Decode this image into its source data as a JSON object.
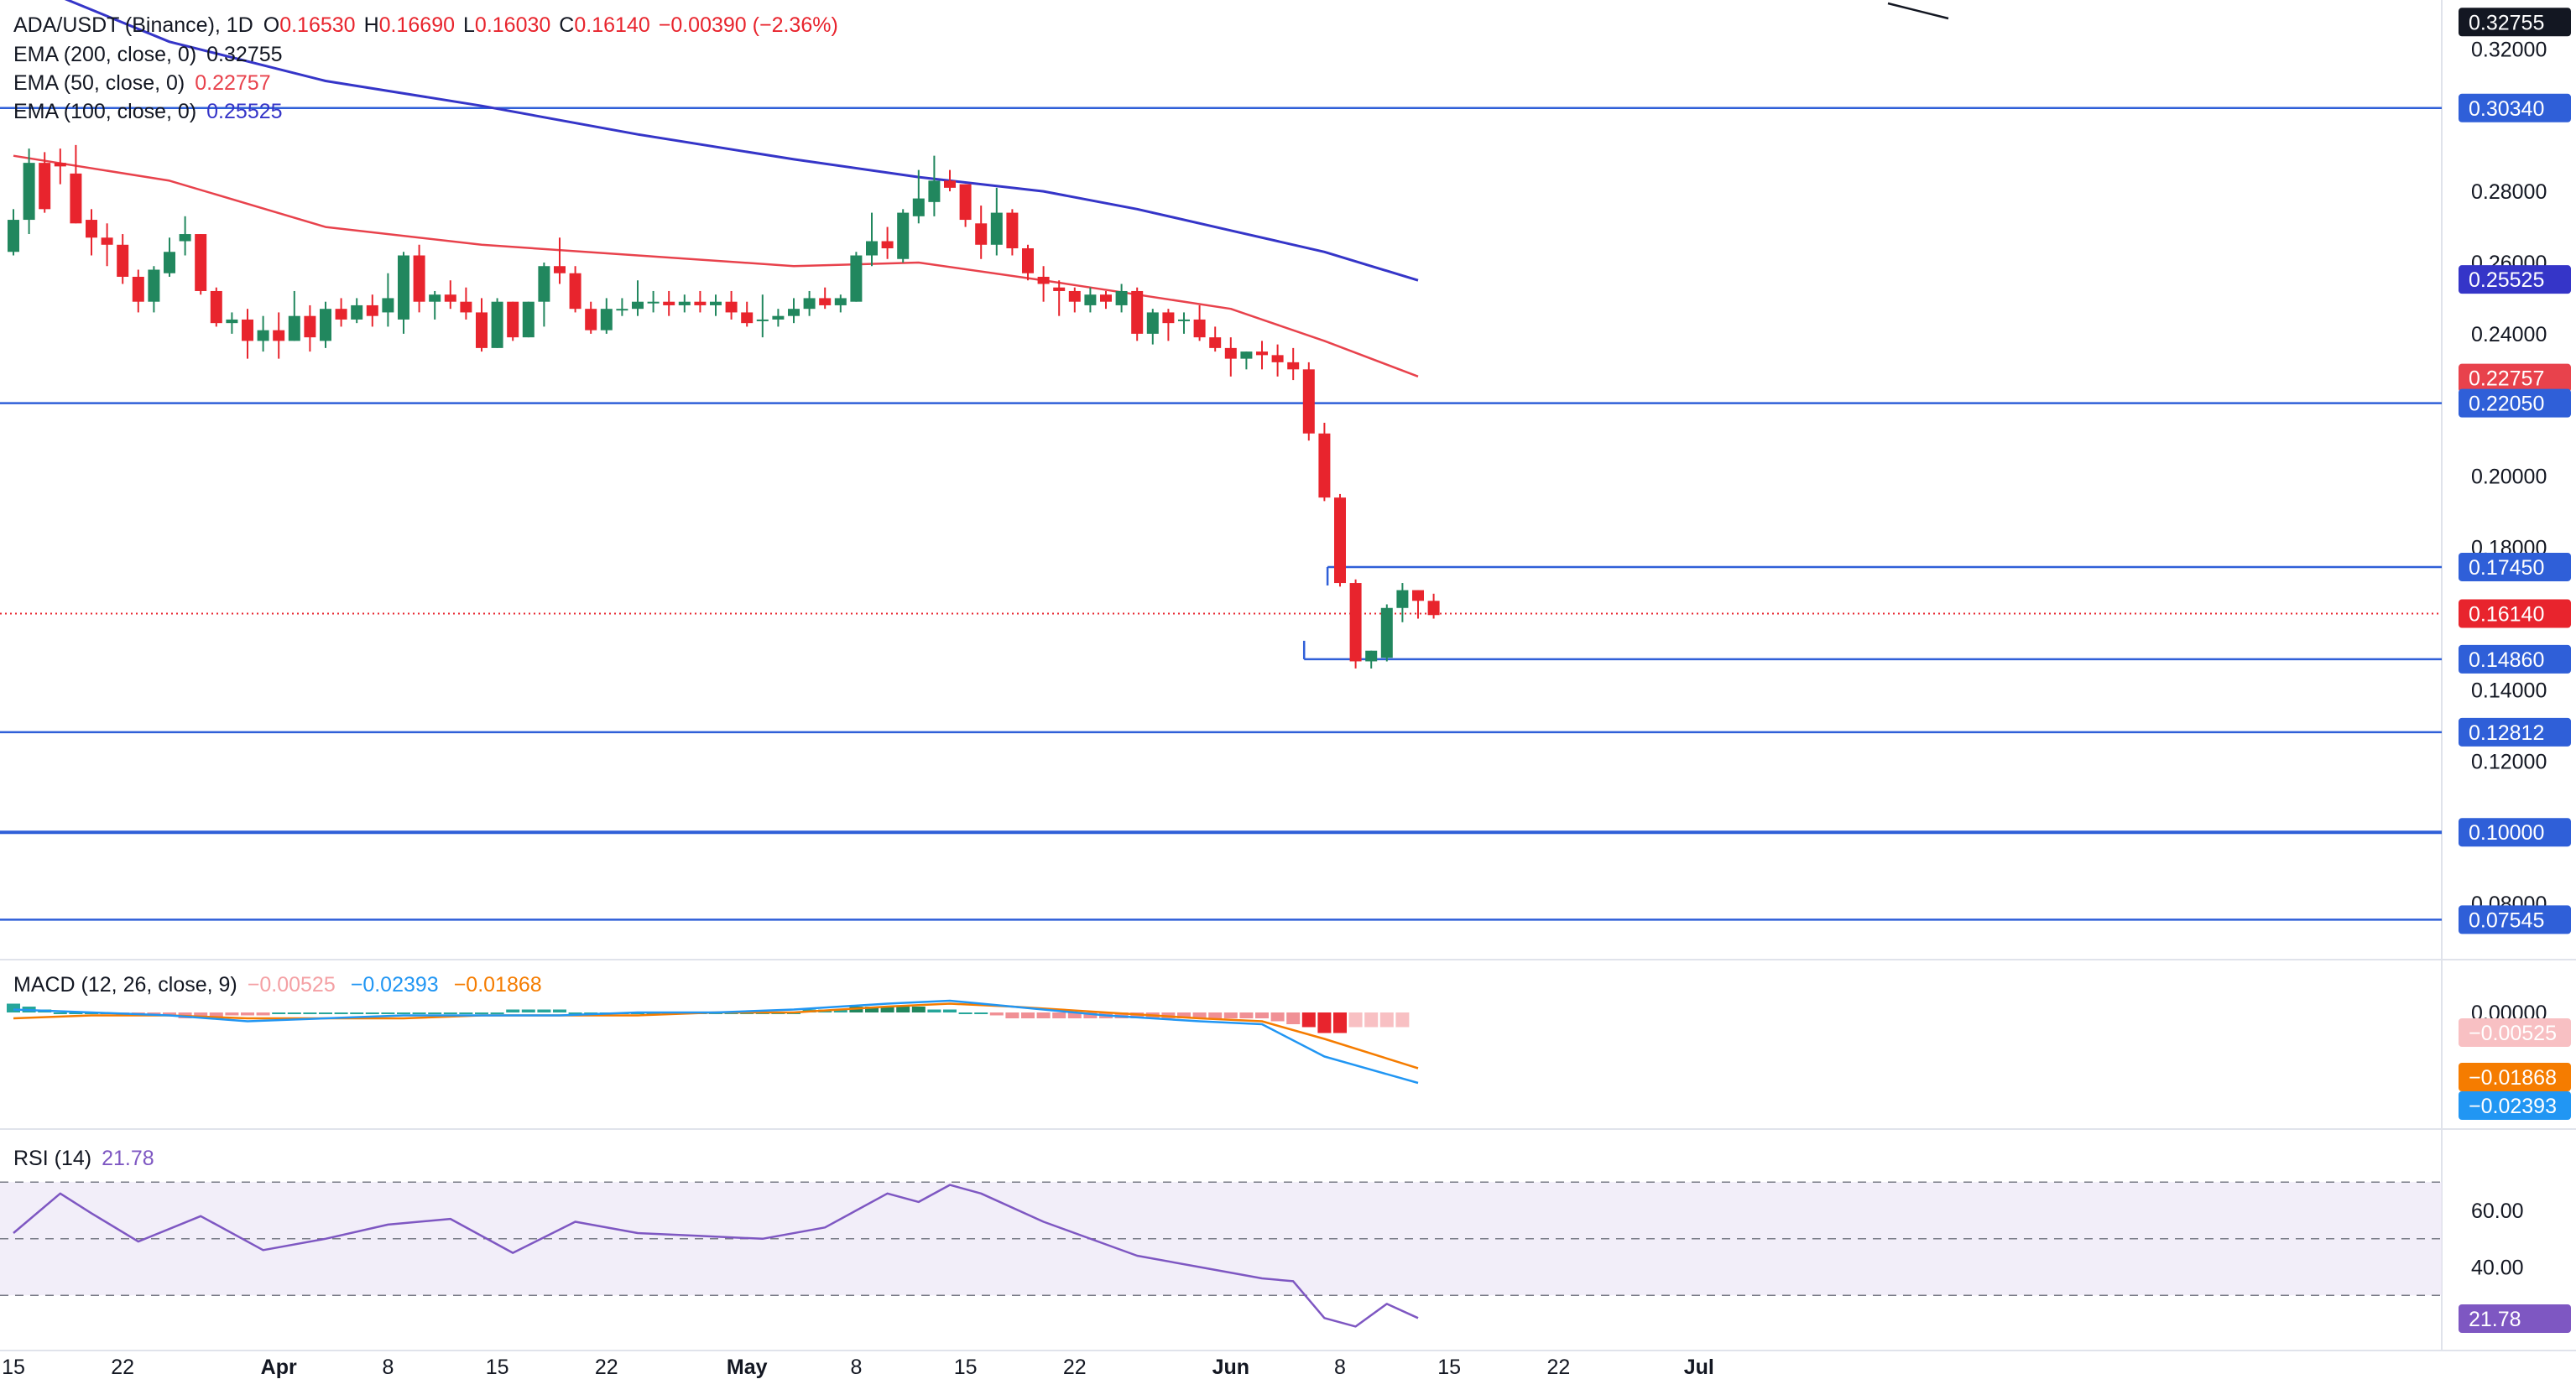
{
  "legend": {
    "symbol": "ADA/USDT (Binance), 1D",
    "open_label": "O",
    "open": "0.16530",
    "high_label": "H",
    "high": "0.16690",
    "low_label": "L",
    "low": "0.16030",
    "close_label": "C",
    "close": "0.16140",
    "change": "−0.00390 (−2.36%)",
    "ema200_label": "EMA (200, close, 0)",
    "ema200": "0.32755",
    "ema50_label": "EMA (50, close, 0)",
    "ema50": "0.22757",
    "ema100_label": "EMA (100, close, 0)",
    "ema100": "0.25525",
    "macd_label": "MACD (12, 26, close, 9)",
    "macd_hist": "−0.00525",
    "macd_line": "−0.02393",
    "macd_signal": "−0.01868",
    "rsi_label": "RSI (14)",
    "rsi": "21.78"
  },
  "colors": {
    "up": "#26a69a",
    "up_body": "#21875e",
    "down": "#e8242d",
    "ema200": "#131722",
    "ema50": "#e8424c",
    "ema100": "#3535c8",
    "level": "#2f5fd8",
    "macd": "#2196f3",
    "signal": "#f57c00",
    "rsi": "#7e57c2"
  },
  "chart_data": {
    "type": "candlestick",
    "symbol": "ADA/USDT",
    "exchange": "Binance",
    "interval": "1D",
    "price_ticks": [
      "0.32000",
      "0.28000",
      "0.26000",
      "0.24000",
      "0.20000",
      "0.18000",
      "0.14000",
      "0.12000",
      "0.08000",
      "0.00000"
    ],
    "x_ticks": [
      {
        "label": "15",
        "i": 0
      },
      {
        "label": "22",
        "i": 7
      },
      {
        "label": "Apr",
        "i": 17
      },
      {
        "label": "8",
        "i": 24
      },
      {
        "label": "15",
        "i": 31
      },
      {
        "label": "22",
        "i": 38
      },
      {
        "label": "May",
        "i": 47
      },
      {
        "label": "8",
        "i": 54
      },
      {
        "label": "15",
        "i": 61
      },
      {
        "label": "22",
        "i": 68
      },
      {
        "label": "Jun",
        "i": 78
      },
      {
        "label": "8",
        "i": 85
      },
      {
        "label": "15",
        "i": 92
      },
      {
        "label": "22",
        "i": 99
      },
      {
        "label": "Jul",
        "i": 108
      }
    ],
    "horizontal_levels": [
      "0.30340",
      "0.22050",
      "0.12812",
      "0.10000",
      "0.07545"
    ],
    "range_box": {
      "start_index": 83,
      "end_index": 116,
      "high": "0.17450",
      "low": "0.14860"
    },
    "last_price": "0.16140",
    "price_labels": [
      {
        "text": "0.32755",
        "value": 0.32755,
        "bg": "#131722"
      },
      {
        "text": "0.30340",
        "value": 0.3034,
        "bg": "#2f5fd8"
      },
      {
        "text": "0.25525",
        "value": 0.25525,
        "bg": "#3535c8"
      },
      {
        "text": "0.22757",
        "value": 0.22757,
        "bg": "#e8424c"
      },
      {
        "text": "0.22050",
        "value": 0.2205,
        "bg": "#2f5fd8"
      },
      {
        "text": "0.17450",
        "value": 0.1745,
        "bg": "#2f5fd8"
      },
      {
        "text": "0.16140",
        "value": 0.1614,
        "bg": "#e8242d"
      },
      {
        "text": "0.14860",
        "value": 0.1486,
        "bg": "#2f5fd8"
      },
      {
        "text": "0.12812",
        "value": 0.12812,
        "bg": "#2f5fd8"
      },
      {
        "text": "0.10000",
        "value": 0.1,
        "bg": "#2f5fd8"
      },
      {
        "text": "0.07545",
        "value": 0.07545,
        "bg": "#2f5fd8"
      }
    ],
    "candles_ohlc": [
      [
        0.263,
        0.275,
        0.262,
        0.272
      ],
      [
        0.272,
        0.292,
        0.268,
        0.288
      ],
      [
        0.288,
        0.291,
        0.274,
        0.275
      ],
      [
        0.288,
        0.292,
        0.282,
        0.287
      ],
      [
        0.285,
        0.293,
        0.271,
        0.271
      ],
      [
        0.272,
        0.275,
        0.262,
        0.267
      ],
      [
        0.267,
        0.271,
        0.259,
        0.265
      ],
      [
        0.265,
        0.268,
        0.254,
        0.256
      ],
      [
        0.256,
        0.258,
        0.246,
        0.249
      ],
      [
        0.249,
        0.259,
        0.246,
        0.258
      ],
      [
        0.257,
        0.267,
        0.256,
        0.263
      ],
      [
        0.266,
        0.273,
        0.262,
        0.268
      ],
      [
        0.268,
        0.268,
        0.251,
        0.252
      ],
      [
        0.252,
        0.253,
        0.242,
        0.243
      ],
      [
        0.243,
        0.246,
        0.24,
        0.244
      ],
      [
        0.244,
        0.247,
        0.233,
        0.238
      ],
      [
        0.238,
        0.245,
        0.235,
        0.241
      ],
      [
        0.241,
        0.246,
        0.233,
        0.238
      ],
      [
        0.238,
        0.252,
        0.238,
        0.245
      ],
      [
        0.245,
        0.248,
        0.235,
        0.239
      ],
      [
        0.238,
        0.249,
        0.236,
        0.247
      ],
      [
        0.247,
        0.25,
        0.242,
        0.244
      ],
      [
        0.244,
        0.25,
        0.243,
        0.248
      ],
      [
        0.248,
        0.251,
        0.242,
        0.245
      ],
      [
        0.246,
        0.257,
        0.242,
        0.25
      ],
      [
        0.244,
        0.263,
        0.24,
        0.262
      ],
      [
        0.262,
        0.265,
        0.246,
        0.249
      ],
      [
        0.249,
        0.252,
        0.244,
        0.251
      ],
      [
        0.251,
        0.255,
        0.247,
        0.249
      ],
      [
        0.249,
        0.253,
        0.244,
        0.246
      ],
      [
        0.246,
        0.25,
        0.235,
        0.236
      ],
      [
        0.236,
        0.25,
        0.236,
        0.249
      ],
      [
        0.249,
        0.249,
        0.238,
        0.239
      ],
      [
        0.239,
        0.249,
        0.239,
        0.249
      ],
      [
        0.249,
        0.26,
        0.242,
        0.259
      ],
      [
        0.259,
        0.267,
        0.254,
        0.257
      ],
      [
        0.257,
        0.259,
        0.246,
        0.247
      ],
      [
        0.247,
        0.249,
        0.24,
        0.241
      ],
      [
        0.241,
        0.25,
        0.24,
        0.247
      ],
      [
        0.247,
        0.25,
        0.245,
        0.247
      ],
      [
        0.247,
        0.255,
        0.245,
        0.249
      ],
      [
        0.249,
        0.252,
        0.246,
        0.249
      ],
      [
        0.249,
        0.252,
        0.245,
        0.248
      ],
      [
        0.248,
        0.251,
        0.246,
        0.249
      ],
      [
        0.249,
        0.252,
        0.246,
        0.248
      ],
      [
        0.248,
        0.251,
        0.245,
        0.249
      ],
      [
        0.249,
        0.252,
        0.244,
        0.246
      ],
      [
        0.246,
        0.249,
        0.242,
        0.243
      ],
      [
        0.244,
        0.251,
        0.239,
        0.244
      ],
      [
        0.244,
        0.247,
        0.242,
        0.245
      ],
      [
        0.245,
        0.25,
        0.243,
        0.247
      ],
      [
        0.247,
        0.252,
        0.245,
        0.25
      ],
      [
        0.25,
        0.253,
        0.247,
        0.248
      ],
      [
        0.248,
        0.251,
        0.246,
        0.25
      ],
      [
        0.249,
        0.263,
        0.249,
        0.262
      ],
      [
        0.262,
        0.274,
        0.259,
        0.266
      ],
      [
        0.266,
        0.27,
        0.261,
        0.264
      ],
      [
        0.261,
        0.275,
        0.26,
        0.274
      ],
      [
        0.273,
        0.286,
        0.271,
        0.278
      ],
      [
        0.277,
        0.29,
        0.273,
        0.283
      ],
      [
        0.283,
        0.286,
        0.28,
        0.281
      ],
      [
        0.282,
        0.282,
        0.27,
        0.272
      ],
      [
        0.271,
        0.276,
        0.261,
        0.265
      ],
      [
        0.265,
        0.281,
        0.262,
        0.274
      ],
      [
        0.274,
        0.275,
        0.262,
        0.264
      ],
      [
        0.264,
        0.265,
        0.255,
        0.257
      ],
      [
        0.256,
        0.259,
        0.249,
        0.254
      ],
      [
        0.253,
        0.255,
        0.245,
        0.252
      ],
      [
        0.252,
        0.253,
        0.246,
        0.249
      ],
      [
        0.248,
        0.253,
        0.246,
        0.251
      ],
      [
        0.251,
        0.252,
        0.247,
        0.249
      ],
      [
        0.248,
        0.254,
        0.246,
        0.252
      ],
      [
        0.252,
        0.253,
        0.238,
        0.24
      ],
      [
        0.24,
        0.247,
        0.237,
        0.246
      ],
      [
        0.246,
        0.247,
        0.238,
        0.243
      ],
      [
        0.244,
        0.246,
        0.24,
        0.244
      ],
      [
        0.244,
        0.248,
        0.238,
        0.239
      ],
      [
        0.239,
        0.242,
        0.235,
        0.236
      ],
      [
        0.236,
        0.239,
        0.228,
        0.233
      ],
      [
        0.233,
        0.235,
        0.23,
        0.235
      ],
      [
        0.235,
        0.238,
        0.23,
        0.234
      ],
      [
        0.234,
        0.237,
        0.228,
        0.232
      ],
      [
        0.232,
        0.236,
        0.227,
        0.23
      ],
      [
        0.23,
        0.232,
        0.21,
        0.212
      ],
      [
        0.212,
        0.215,
        0.193,
        0.194
      ],
      [
        0.194,
        0.195,
        0.169,
        0.17
      ],
      [
        0.17,
        0.171,
        0.146,
        0.148
      ],
      [
        0.148,
        0.151,
        0.146,
        0.151
      ],
      [
        0.149,
        0.164,
        0.148,
        0.163
      ],
      [
        0.163,
        0.17,
        0.159,
        0.168
      ],
      [
        0.168,
        0.168,
        0.16,
        0.165
      ],
      [
        0.165,
        0.167,
        0.16,
        0.161
      ]
    ],
    "candle_x_start": 0,
    "candle_step": 1,
    "ema50": [
      [
        0,
        0.29
      ],
      [
        10,
        0.283
      ],
      [
        20,
        0.27
      ],
      [
        30,
        0.265
      ],
      [
        40,
        0.262
      ],
      [
        50,
        0.259
      ],
      [
        58,
        0.26
      ],
      [
        66,
        0.255
      ],
      [
        72,
        0.251
      ],
      [
        78,
        0.247
      ],
      [
        84,
        0.238
      ],
      [
        90,
        0.228
      ]
    ],
    "ema100": [
      [
        0,
        0.34
      ],
      [
        10,
        0.322
      ],
      [
        20,
        0.311
      ],
      [
        30,
        0.304
      ],
      [
        40,
        0.296
      ],
      [
        50,
        0.289
      ],
      [
        58,
        0.284
      ],
      [
        66,
        0.28
      ],
      [
        72,
        0.275
      ],
      [
        78,
        0.269
      ],
      [
        84,
        0.263
      ],
      [
        90,
        0.255
      ]
    ],
    "ema200": [
      [
        86,
        0.331
      ],
      [
        90,
        0.328
      ]
    ],
    "macd_panel": {
      "zero_tick": "0.00000",
      "macd": [
        [
          0,
          0.001
        ],
        [
          5,
          0.0
        ],
        [
          10,
          -0.001
        ],
        [
          15,
          -0.003
        ],
        [
          20,
          -0.002
        ],
        [
          25,
          -0.001
        ],
        [
          30,
          -0.001
        ],
        [
          35,
          -0.001
        ],
        [
          40,
          0.0
        ],
        [
          45,
          0.0
        ],
        [
          50,
          0.001
        ],
        [
          56,
          0.003
        ],
        [
          60,
          0.004
        ],
        [
          64,
          0.002
        ],
        [
          70,
          -0.001
        ],
        [
          76,
          -0.003
        ],
        [
          80,
          -0.004
        ],
        [
          84,
          -0.015
        ],
        [
          90,
          -0.024
        ]
      ],
      "signal": [
        [
          0,
          -0.002
        ],
        [
          5,
          -0.001
        ],
        [
          10,
          -0.001
        ],
        [
          15,
          -0.002
        ],
        [
          20,
          -0.002
        ],
        [
          25,
          -0.002
        ],
        [
          30,
          -0.001
        ],
        [
          35,
          -0.001
        ],
        [
          40,
          -0.001
        ],
        [
          45,
          0.0
        ],
        [
          50,
          0.0
        ],
        [
          56,
          0.002
        ],
        [
          60,
          0.003
        ],
        [
          64,
          0.002
        ],
        [
          70,
          0.0
        ],
        [
          76,
          -0.002
        ],
        [
          80,
          -0.003
        ],
        [
          84,
          -0.009
        ],
        [
          90,
          -0.019
        ]
      ],
      "histogram": [
        0.003,
        0.002,
        0.001,
        0.0,
        0.0,
        0.0,
        0.0,
        -0.001,
        -0.001,
        -0.001,
        -0.001,
        -0.002,
        -0.002,
        -0.002,
        -0.001,
        -0.001,
        -0.001,
        0.0,
        0.0,
        0.0,
        0.0,
        0.0,
        0.0,
        0.0,
        0.0,
        0.0,
        0.0,
        0.0,
        0.0,
        0.0,
        0.0,
        0.0,
        0.001,
        0.001,
        0.001,
        0.001,
        0.0,
        0.0,
        0.0,
        0.0,
        0.0,
        0.0,
        0.0,
        0.0,
        0.0,
        0.0,
        0.0,
        0.0,
        0.0,
        0.0,
        0.0,
        0.001,
        0.001,
        0.001,
        0.002,
        0.002,
        0.002,
        0.002,
        0.002,
        0.001,
        0.001,
        0.0,
        0.0,
        -0.001,
        -0.002,
        -0.002,
        -0.002,
        -0.002,
        -0.002,
        -0.002,
        -0.002,
        -0.002,
        -0.002,
        -0.002,
        -0.002,
        -0.002,
        -0.002,
        -0.002,
        -0.002,
        -0.002,
        -0.002,
        -0.003,
        -0.004,
        -0.005,
        -0.007,
        -0.007,
        -0.005,
        -0.005,
        -0.005,
        -0.005
      ]
    },
    "rsi_panel": {
      "ticks": [
        "60.00",
        "40.00"
      ],
      "bands": [
        30,
        50,
        70
      ],
      "values": [
        [
          0,
          52
        ],
        [
          3,
          66
        ],
        [
          5,
          59
        ],
        [
          8,
          49
        ],
        [
          12,
          58
        ],
        [
          16,
          46
        ],
        [
          20,
          50
        ],
        [
          24,
          55
        ],
        [
          28,
          57
        ],
        [
          32,
          45
        ],
        [
          36,
          56
        ],
        [
          40,
          52
        ],
        [
          44,
          51
        ],
        [
          48,
          50
        ],
        [
          52,
          54
        ],
        [
          56,
          66
        ],
        [
          58,
          63
        ],
        [
          60,
          69
        ],
        [
          62,
          66
        ],
        [
          66,
          56
        ],
        [
          70,
          48
        ],
        [
          72,
          44
        ],
        [
          76,
          40
        ],
        [
          80,
          36
        ],
        [
          82,
          35
        ],
        [
          84,
          22
        ],
        [
          86,
          19
        ],
        [
          88,
          27
        ],
        [
          90,
          22
        ]
      ]
    }
  }
}
